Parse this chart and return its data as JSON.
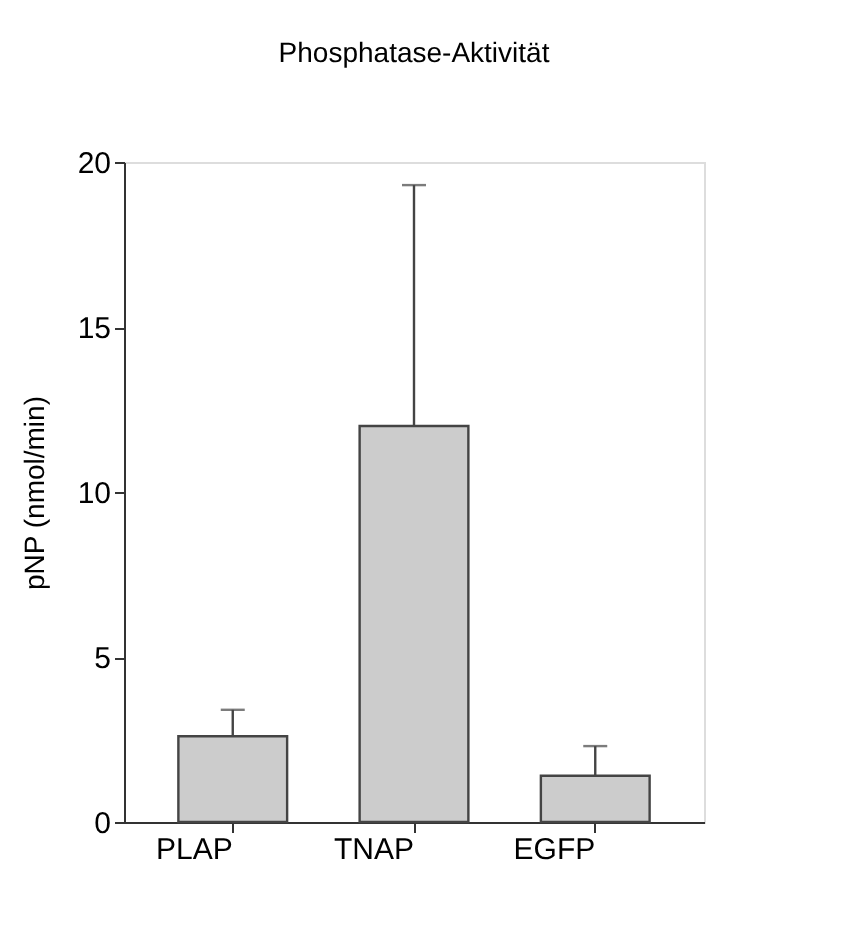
{
  "chart_data": {
    "type": "bar",
    "title": "Phosphatase-Aktivität",
    "ylabel": "pNP (nmol/min)",
    "categories": [
      "PLAP",
      "TNAP",
      "EGFP"
    ],
    "values": [
      2.6,
      12.0,
      1.4
    ],
    "errors": [
      [
        2.6,
        3.4
      ],
      [
        12.0,
        19.3
      ],
      [
        1.4,
        2.3
      ]
    ],
    "color": "#cccccc",
    "ylim": [
      0,
      20
    ],
    "yticks": [
      0,
      5,
      10,
      15,
      20
    ]
  }
}
